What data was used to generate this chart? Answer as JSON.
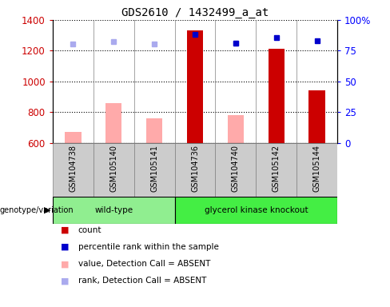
{
  "title": "GDS2610 / 1432499_a_at",
  "samples": [
    "GSM104738",
    "GSM105140",
    "GSM105141",
    "GSM104736",
    "GSM104740",
    "GSM105142",
    "GSM105144"
  ],
  "count_values": [
    null,
    null,
    null,
    1330,
    null,
    1210,
    940
  ],
  "count_color": "#cc0000",
  "value_absent": [
    670,
    860,
    760,
    null,
    780,
    null,
    null
  ],
  "value_absent_color": "#ffaaaa",
  "rank_absent_left": [
    1245,
    1260,
    1245,
    null,
    1250,
    null,
    null
  ],
  "rank_absent_color": "#aaaaee",
  "percentile_left": [
    null,
    null,
    null,
    1305,
    1250,
    1285,
    1265
  ],
  "percentile_color": "#0000cc",
  "ylim_left": [
    600,
    1400
  ],
  "ylim_right": [
    0,
    100
  ],
  "yticks_left": [
    600,
    800,
    1000,
    1200,
    1400
  ],
  "yticks_right": [
    0,
    25,
    50,
    75,
    100
  ],
  "ytick_labels_right": [
    "0",
    "25",
    "50",
    "75",
    "100%"
  ],
  "wt_color": "#90ee90",
  "gk_color": "#44ee44",
  "sample_bg_color": "#cccccc",
  "legend_items": [
    {
      "label": "count",
      "color": "#cc0000"
    },
    {
      "label": "percentile rank within the sample",
      "color": "#0000cc"
    },
    {
      "label": "value, Detection Call = ABSENT",
      "color": "#ffaaaa"
    },
    {
      "label": "rank, Detection Call = ABSENT",
      "color": "#aaaaee"
    }
  ],
  "figsize": [
    4.88,
    3.84
  ],
  "dpi": 100,
  "bar_width": 0.4
}
